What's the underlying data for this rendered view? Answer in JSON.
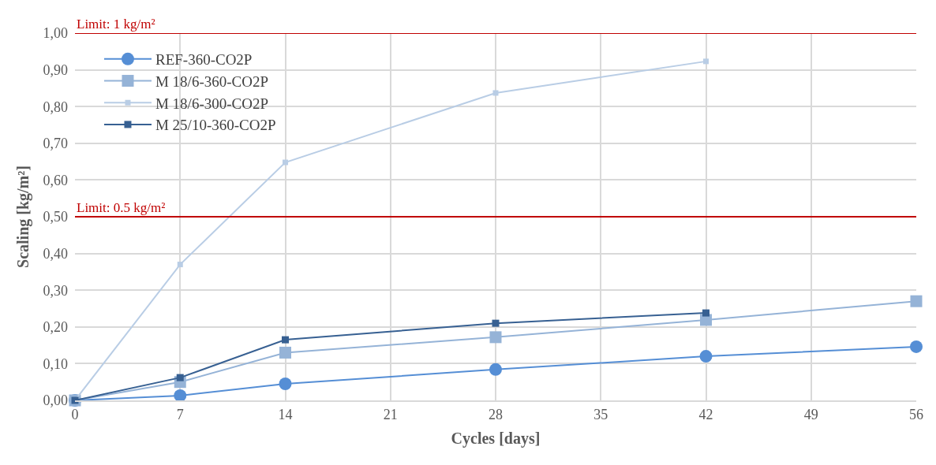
{
  "chart_data": {
    "type": "line",
    "xlabel": "Cycles [days]",
    "ylabel": "Scaling [kg/m²]",
    "x": [
      0,
      7,
      14,
      28,
      42,
      56
    ],
    "series": [
      {
        "name": "REF-360-CO2P",
        "color": "#558ed5",
        "marker": "circle",
        "values": [
          0,
          0.013,
          0.045,
          0.084,
          0.12,
          0.146
        ]
      },
      {
        "name": "M 18/6-360-CO2P",
        "color": "#95b3d7",
        "marker": "square",
        "values": [
          0,
          0.05,
          0.13,
          0.172,
          0.219,
          0.27
        ]
      },
      {
        "name": "M 18/6-300-CO2P",
        "color": "#b9cde5",
        "marker": "square",
        "values": [
          0,
          0.37,
          0.648,
          0.837,
          0.923,
          null
        ]
      },
      {
        "name": "M 25/10-360-CO2P",
        "color": "#376092",
        "marker": "square",
        "values": [
          0,
          0.062,
          0.165,
          0.21,
          0.238,
          null
        ]
      }
    ],
    "xlim": [
      0,
      56
    ],
    "xticks": [
      0,
      7,
      14,
      21,
      28,
      35,
      42,
      49,
      56
    ],
    "ylim": [
      0,
      1
    ],
    "yticks": [
      {
        "value": 0,
        "label": "0,00"
      },
      {
        "value": 0.1,
        "label": "0,10"
      },
      {
        "value": 0.2,
        "label": "0,20"
      },
      {
        "value": 0.3,
        "label": "0,30"
      },
      {
        "value": 0.4,
        "label": "0,40"
      },
      {
        "value": 0.5,
        "label": "0,50"
      },
      {
        "value": 0.6,
        "label": "0,60"
      },
      {
        "value": 0.7,
        "label": "0,70"
      },
      {
        "value": 0.8,
        "label": "0,80"
      },
      {
        "value": 0.9,
        "label": "0,90"
      },
      {
        "value": 1,
        "label": "1,00"
      }
    ],
    "ref_lines": [
      {
        "axis": "y",
        "value": 1,
        "label": "Limit: 1 kg/m²",
        "color": "#c00000"
      },
      {
        "axis": "y",
        "value": 0.5,
        "label": "Limit: 0.5 kg/m²",
        "color": "#c00000"
      }
    ],
    "grid": true,
    "legend": "top left"
  }
}
